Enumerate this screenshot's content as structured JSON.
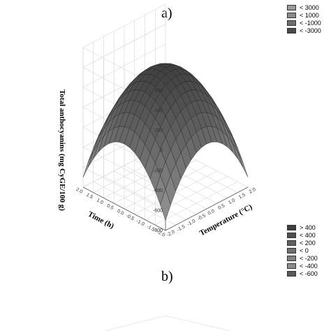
{
  "panel_a": {
    "label": "a)"
  },
  "legend_a": {
    "items": [
      {
        "label": "< 3000",
        "color": "#9a9a9a"
      },
      {
        "label": "< 1000",
        "color": "#8a8a8a"
      },
      {
        "label": "< -1000",
        "color": "#6e6e6e"
      },
      {
        "label": "< -3000",
        "color": "#4a4a4a"
      }
    ]
  },
  "panel_b": {
    "label": "b)"
  },
  "legend_b": {
    "items": [
      {
        "label": "> 400",
        "color": "#3e3e3e"
      },
      {
        "label": "< 400",
        "color": "#4f4f4f"
      },
      {
        "label": "< 200",
        "color": "#606060"
      },
      {
        "label": "< 0",
        "color": "#707070"
      },
      {
        "label": "< -200",
        "color": "#808080"
      },
      {
        "label": "< -400",
        "color": "#8c8c8c"
      },
      {
        "label": "< -600",
        "color": "#5a5a5a"
      }
    ]
  },
  "chart_data": {
    "type": "surface",
    "zlabel": "Total anthocyanins (mg CyGE/100 g)",
    "xlabel": "Temperature (°C)",
    "ylabel": "Time (h)",
    "zticks": [
      "600",
      "400",
      "200",
      "0",
      "-200",
      "-400",
      "-600",
      "-800"
    ],
    "xticks": [
      "-2.0",
      "-1.5",
      "-1.0",
      "-0.5",
      "0.0",
      "0.5",
      "1.0",
      "1.5",
      "2.0"
    ],
    "yticks": [
      "2.0",
      "1.5",
      "1.0",
      "0.5",
      "0.0",
      "-0.5",
      "-1.0",
      "-1.5",
      "-2.0"
    ],
    "xlim": [
      -2,
      2
    ],
    "ylim": [
      -2,
      2
    ],
    "zlim": [
      -800,
      600
    ],
    "surface": {
      "z_peak": 400,
      "x_peak": 0,
      "y_peak": 0,
      "z_corner_min": -700
    }
  }
}
